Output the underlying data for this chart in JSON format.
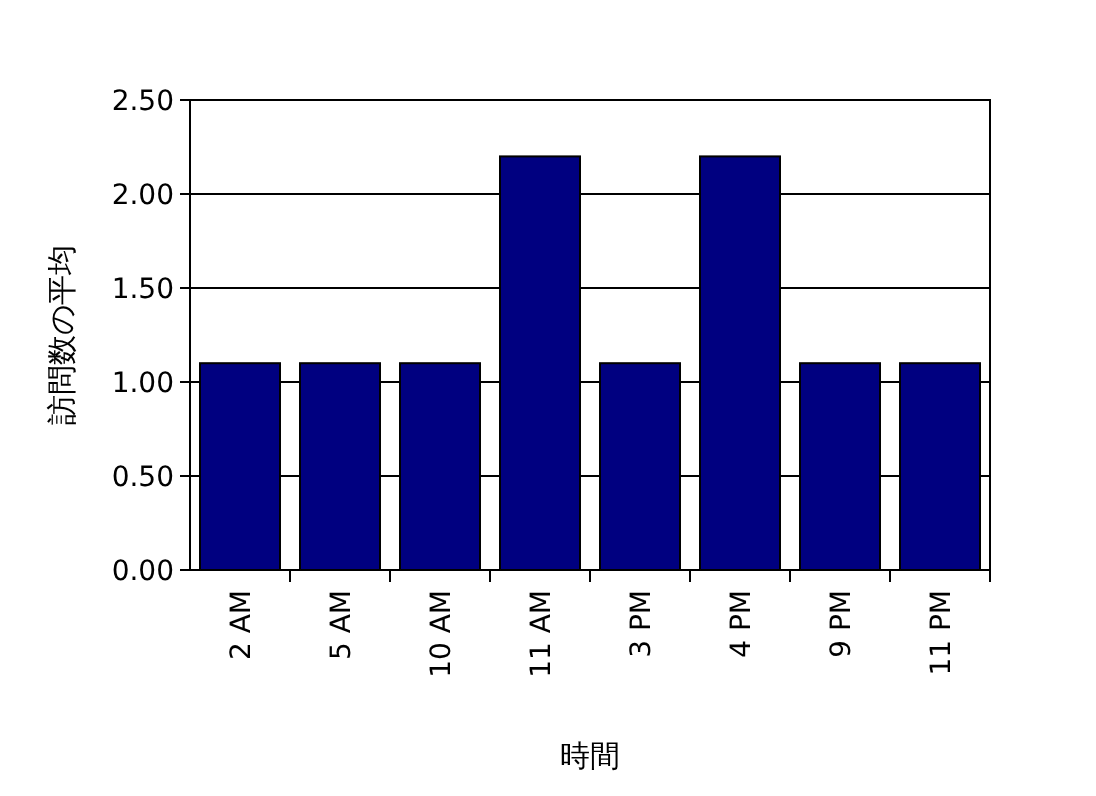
{
  "chart_data": {
    "type": "bar",
    "xlabel": "時間",
    "ylabel": "訪問数の平均",
    "categories": [
      "2 AM",
      "5 AM",
      "10 AM",
      "11 AM",
      "3 PM",
      "4 PM",
      "9 PM",
      "11 PM"
    ],
    "values": [
      1.1,
      1.1,
      1.1,
      2.2,
      1.1,
      2.2,
      1.1,
      1.1
    ],
    "color": "#000080",
    "ylim": [
      0,
      2.5
    ],
    "yticks": [
      {
        "value": 0,
        "label": "0.00"
      },
      {
        "value": 0.5,
        "label": "0.50"
      },
      {
        "value": 1,
        "label": "1.00"
      },
      {
        "value": 1.5,
        "label": "1.50"
      },
      {
        "value": 2,
        "label": "2.00"
      },
      {
        "value": 2.5,
        "label": "2.50"
      }
    ],
    "grid": "y"
  }
}
